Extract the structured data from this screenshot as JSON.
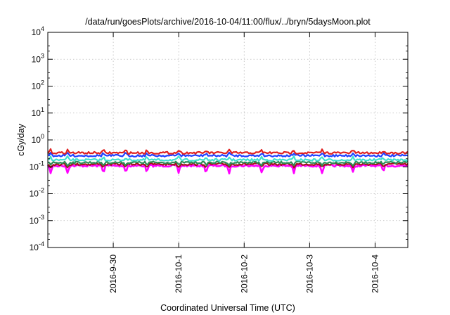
{
  "chart_data": {
    "type": "line",
    "title": "/data/run/goesPlots/archive/2016-10-04/11:00/flux/../bryn/5daysMoon.plot",
    "xlabel": "Coordinated Universal Time (UTC)",
    "ylabel": "cGy/day",
    "yscale": "log",
    "ylim": [
      0.0001,
      10000
    ],
    "xlim": [
      "2016-09-29 00:00",
      "2016-10-04 12:00"
    ],
    "grid": true,
    "legend": "none",
    "y_ticks": [
      {
        "value": 0.0001,
        "base": "10",
        "exp": "-4"
      },
      {
        "value": 0.001,
        "base": "10",
        "exp": "-3"
      },
      {
        "value": 0.01,
        "base": "10",
        "exp": "-2"
      },
      {
        "value": 0.1,
        "base": "10",
        "exp": "-1"
      },
      {
        "value": 1,
        "base": "10",
        "exp": "0"
      },
      {
        "value": 10,
        "base": "10",
        "exp": "1"
      },
      {
        "value": 100,
        "base": "10",
        "exp": "2"
      },
      {
        "value": 1000,
        "base": "10",
        "exp": "3"
      },
      {
        "value": 10000,
        "base": "10",
        "exp": "4"
      }
    ],
    "x_ticks": [
      {
        "value": "2016-09-30 00:00",
        "label": "2016-9-30"
      },
      {
        "value": "2016-10-01 00:00",
        "label": "2016-10-1"
      },
      {
        "value": "2016-10-02 00:00",
        "label": "2016-10-2"
      },
      {
        "value": "2016-10-03 00:00",
        "label": "2016-10-3"
      },
      {
        "value": "2016-10-04 00:00",
        "label": "2016-10-4"
      }
    ],
    "series": [
      {
        "color": "#ff00ff",
        "x": [
          "2016-09-29 00:00",
          "2016-09-29 12:00",
          "2016-09-30 00:00",
          "2016-09-30 12:00",
          "2016-10-01 00:00",
          "2016-10-01 12:00",
          "2016-10-02 00:00",
          "2016-10-02 12:00",
          "2016-10-03 00:00",
          "2016-10-03 12:00",
          "2016-10-04 00:00",
          "2016-10-04 12:00"
        ],
        "y": [
          0.11,
          0.11,
          0.11,
          0.11,
          0.11,
          0.11,
          0.11,
          0.11,
          0.11,
          0.11,
          0.11,
          0.11
        ]
      },
      {
        "color": "#a01818",
        "x": [
          "2016-09-29 00:00",
          "2016-09-29 12:00",
          "2016-09-30 00:00",
          "2016-09-30 12:00",
          "2016-10-01 00:00",
          "2016-10-01 12:00",
          "2016-10-02 00:00",
          "2016-10-02 12:00",
          "2016-10-03 00:00",
          "2016-10-03 12:00",
          "2016-10-04 00:00",
          "2016-10-04 12:00"
        ],
        "y": [
          0.125,
          0.125,
          0.125,
          0.125,
          0.125,
          0.125,
          0.125,
          0.125,
          0.125,
          0.125,
          0.125,
          0.125
        ]
      },
      {
        "color": "#2e8b57",
        "x": [
          "2016-09-29 00:00",
          "2016-09-29 12:00",
          "2016-09-30 00:00",
          "2016-09-30 12:00",
          "2016-10-01 00:00",
          "2016-10-01 12:00",
          "2016-10-02 00:00",
          "2016-10-02 12:00",
          "2016-10-03 00:00",
          "2016-10-03 12:00",
          "2016-10-04 00:00",
          "2016-10-04 12:00"
        ],
        "y": [
          0.145,
          0.145,
          0.145,
          0.145,
          0.145,
          0.145,
          0.145,
          0.145,
          0.145,
          0.145,
          0.145,
          0.145
        ]
      },
      {
        "color": "#40e0d0",
        "x": [
          "2016-09-29 00:00",
          "2016-09-29 12:00",
          "2016-09-30 00:00",
          "2016-09-30 12:00",
          "2016-10-01 00:00",
          "2016-10-01 12:00",
          "2016-10-02 00:00",
          "2016-10-02 12:00",
          "2016-10-03 00:00",
          "2016-10-03 12:00",
          "2016-10-04 00:00",
          "2016-10-04 12:00"
        ],
        "y": [
          0.18,
          0.18,
          0.18,
          0.18,
          0.18,
          0.18,
          0.18,
          0.18,
          0.18,
          0.18,
          0.18,
          0.18
        ]
      },
      {
        "color": "#2040ff",
        "x": [
          "2016-09-29 00:00",
          "2016-09-29 12:00",
          "2016-09-30 00:00",
          "2016-09-30 12:00",
          "2016-10-01 00:00",
          "2016-10-01 12:00",
          "2016-10-02 00:00",
          "2016-10-02 12:00",
          "2016-10-03 00:00",
          "2016-10-03 12:00",
          "2016-10-04 00:00",
          "2016-10-04 12:00"
        ],
        "y": [
          0.26,
          0.26,
          0.26,
          0.26,
          0.26,
          0.26,
          0.26,
          0.26,
          0.26,
          0.26,
          0.26,
          0.26
        ]
      },
      {
        "color": "#e02020",
        "x": [
          "2016-09-29 00:00",
          "2016-09-29 12:00",
          "2016-09-30 00:00",
          "2016-09-30 12:00",
          "2016-10-01 00:00",
          "2016-10-01 12:00",
          "2016-10-02 00:00",
          "2016-10-02 12:00",
          "2016-10-03 00:00",
          "2016-10-03 12:00",
          "2016-10-04 00:00",
          "2016-10-04 12:00"
        ],
        "y": [
          0.33,
          0.33,
          0.33,
          0.33,
          0.33,
          0.33,
          0.33,
          0.33,
          0.33,
          0.33,
          0.33,
          0.33
        ]
      }
    ]
  }
}
